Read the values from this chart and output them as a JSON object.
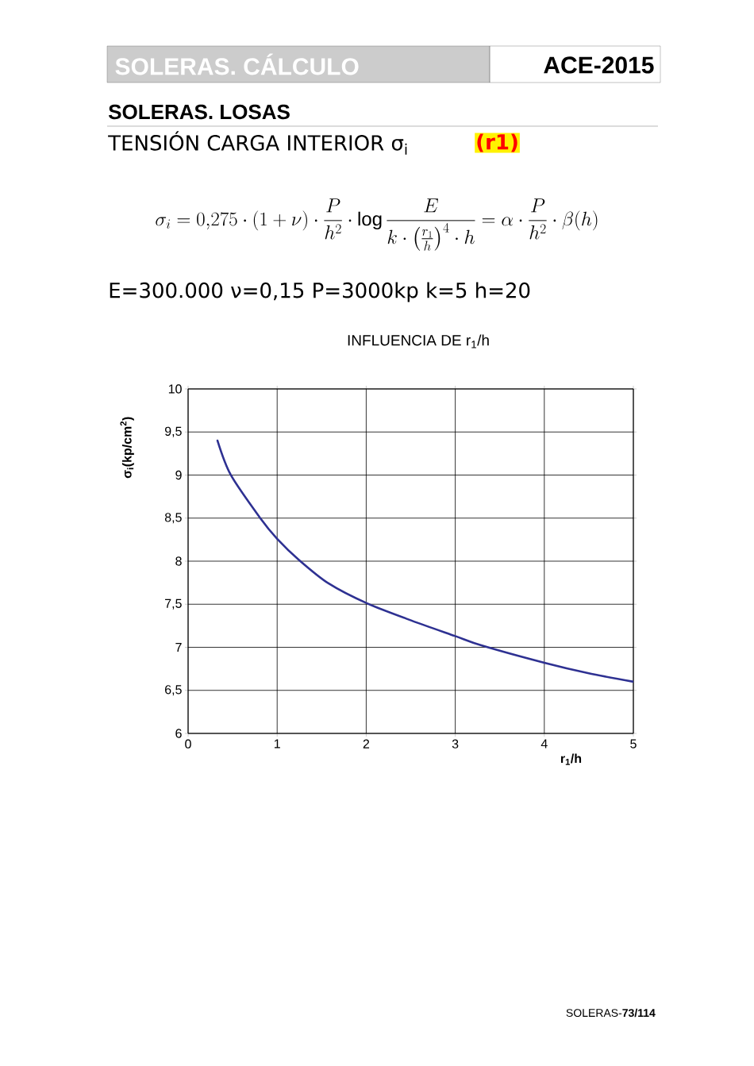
{
  "chart_data": {
    "type": "line",
    "title": "INFLUENCIA DE r$_{1}$/h",
    "xlabel": "r$_{1}$/h",
    "ylabel": "σ$_{i}$(kp/cm$^{2}$)",
    "annotations": [
      "SOLERAS.  CÁLCULO",
      "ACE-2015",
      "SOLERAS. LOSAS",
      "TENSIÓN CARGA INTERIOR σ$_{i}$",
      "(r1)",
      "\\sigma_{i} = 0{,}275\\cdot(1+\\nu)\\cdot\\frac{P}{h^{2}}\\cdot\\log\\frac{E}{k\\cdot\\left(\\frac{r_{1}}{h}\\right)^{4}\\cdot h} = \\alpha\\cdot\\frac{P}{h^{2}}\\cdot\\beta(h)",
      "E=300.000  ν=0,15  P=3000kp   k=5  h=20",
      "SOLERAS-**73/114**"
    ],
    "x": [
      0.33,
      0.48,
      0.81,
      1.0,
      1.25,
      1.58,
      2.01,
      2.51,
      3.0,
      3.3,
      4.0,
      4.49,
      5.0
    ],
    "series": [
      {
        "color": "#2e3192",
        "values": [
          9.4,
          9.0,
          8.5,
          8.26,
          8.01,
          7.74,
          7.51,
          7.31,
          7.13,
          7.02,
          6.82,
          6.7,
          6.6
        ]
      }
    ],
    "xlim": [
      0,
      5
    ],
    "xticks": [
      0,
      1,
      2,
      3,
      4,
      5
    ],
    "ylim": [
      6,
      10
    ],
    "yticks": [
      6,
      {
        "value": 6.5,
        "label": "6,5"
      },
      7,
      {
        "value": 7.5,
        "label": "7,5"
      },
      8,
      {
        "value": 8.5,
        "label": "8,5"
      },
      9,
      {
        "value": 9.5,
        "label": "9,5"
      },
      10
    ],
    "grid": true
  }
}
